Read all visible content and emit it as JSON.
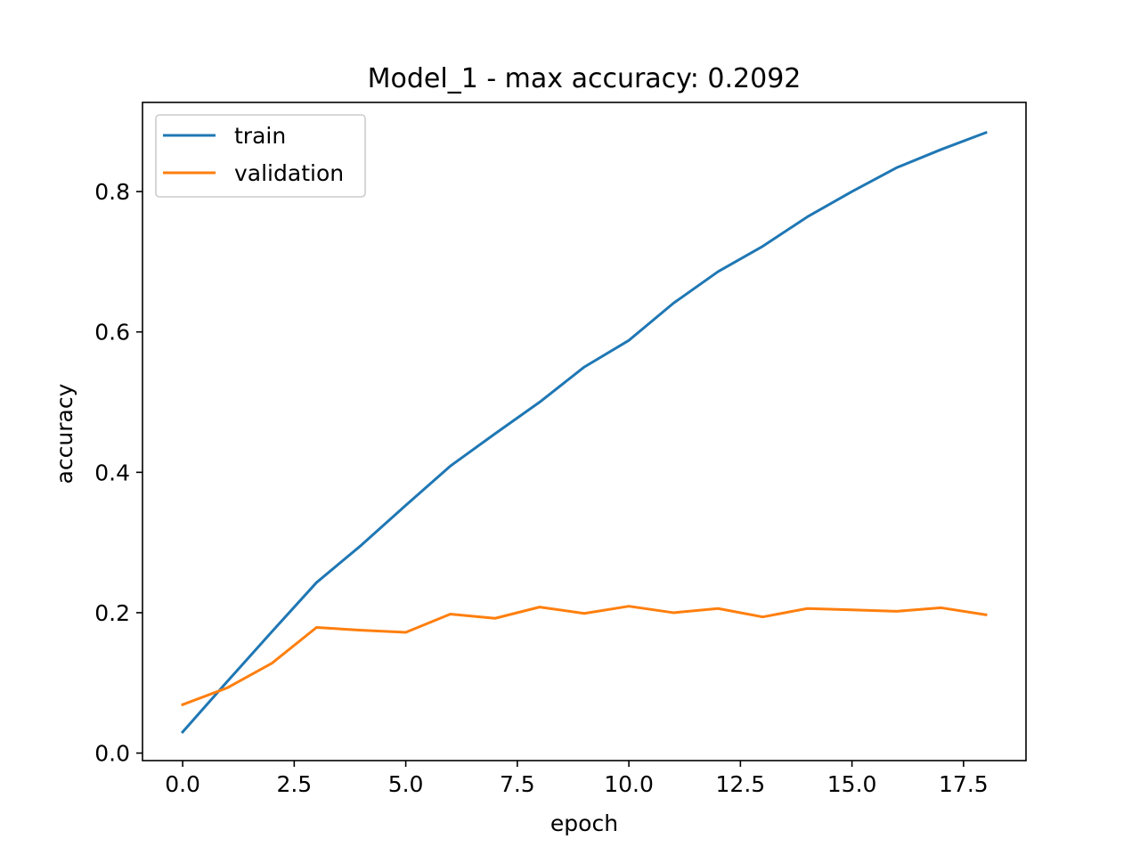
{
  "chart_data": {
    "type": "line",
    "title": "Model_1 - max accuracy: 0.2092",
    "xlabel": "epoch",
    "ylabel": "accuracy",
    "xlim": [
      -0.9,
      18.9
    ],
    "ylim": [
      -0.0107,
      0.927
    ],
    "x_ticks": [
      0,
      2.5,
      5,
      7.5,
      10,
      12.5,
      15,
      17.5
    ],
    "x_tick_labels": [
      "0.0",
      "2.5",
      "5.0",
      "7.5",
      "10.0",
      "12.5",
      "15.0",
      "17.5"
    ],
    "y_ticks": [
      0,
      0.2,
      0.4,
      0.6,
      0.8
    ],
    "y_tick_labels": [
      "0.0",
      "0.2",
      "0.4",
      "0.6",
      "0.8"
    ],
    "grid": false,
    "legend_position": "upper-left",
    "x": [
      0,
      1,
      2,
      3,
      4,
      5,
      6,
      7,
      8,
      9,
      10,
      11,
      12,
      13,
      14,
      15,
      16,
      17,
      18
    ],
    "series": [
      {
        "name": "train",
        "color": "#1f77b4",
        "values": [
          0.03,
          0.102,
          0.173,
          0.243,
          0.296,
          0.353,
          0.409,
          0.455,
          0.5,
          0.55,
          0.588,
          0.641,
          0.686,
          0.722,
          0.764,
          0.8,
          0.834,
          0.86,
          0.884
        ]
      },
      {
        "name": "validation",
        "color": "#ff7f0e",
        "values": [
          0.069,
          0.093,
          0.128,
          0.179,
          0.175,
          0.172,
          0.198,
          0.192,
          0.208,
          0.199,
          0.2092,
          0.2,
          0.206,
          0.194,
          0.206,
          0.204,
          0.202,
          0.207,
          0.197
        ]
      }
    ]
  }
}
